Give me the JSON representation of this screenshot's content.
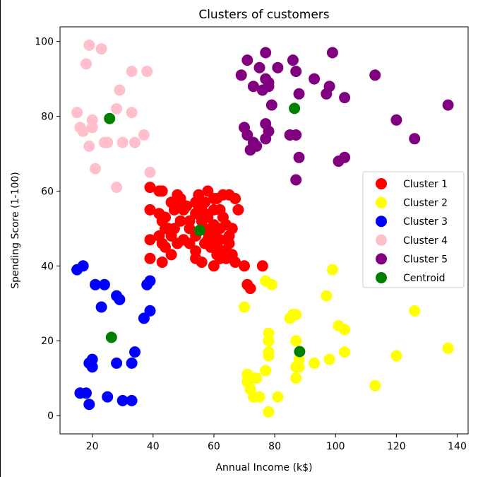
{
  "chart_data": {
    "type": "scatter",
    "title": "Clusters of customers",
    "xlabel": "Annual Income (k$)",
    "ylabel": "Spending Score (1-100)",
    "xlim": [
      9.4,
      143.6
    ],
    "ylim": [
      -4.9,
      103.9
    ],
    "x_ticks": [
      20,
      40,
      60,
      80,
      100,
      120,
      140
    ],
    "y_ticks": [
      0,
      20,
      40,
      60,
      80,
      100
    ],
    "grid": false,
    "legend_position": "center-right",
    "series": [
      {
        "name": "Cluster 1",
        "color": "#ff0000",
        "points": [
          [
            39,
            61
          ],
          [
            42,
            60
          ],
          [
            43,
            60
          ],
          [
            39,
            55
          ],
          [
            42,
            54
          ],
          [
            43,
            52
          ],
          [
            44,
            50
          ],
          [
            44,
            53
          ],
          [
            45,
            50
          ],
          [
            47,
            55
          ],
          [
            48,
            59
          ],
          [
            49,
            58
          ],
          [
            46,
            57
          ],
          [
            48,
            56
          ],
          [
            50,
            55
          ],
          [
            51,
            56
          ],
          [
            52,
            52
          ],
          [
            54,
            54
          ],
          [
            55,
            55
          ],
          [
            56,
            56
          ],
          [
            57,
            57
          ],
          [
            58,
            60
          ],
          [
            60,
            58
          ],
          [
            61,
            58
          ],
          [
            63,
            59
          ],
          [
            65,
            59
          ],
          [
            67,
            58
          ],
          [
            68,
            55
          ],
          [
            54,
            57
          ],
          [
            56,
            52
          ],
          [
            58,
            53
          ],
          [
            60,
            51
          ],
          [
            62,
            50
          ],
          [
            62,
            55
          ],
          [
            64,
            51
          ],
          [
            65,
            48
          ],
          [
            66,
            50
          ],
          [
            65,
            46
          ],
          [
            63,
            44
          ],
          [
            62,
            42
          ],
          [
            60,
            40
          ],
          [
            61,
            43
          ],
          [
            59,
            45
          ],
          [
            57,
            46
          ],
          [
            54,
            48
          ],
          [
            54,
            44
          ],
          [
            54,
            42
          ],
          [
            52,
            46
          ],
          [
            50,
            47
          ],
          [
            48,
            46
          ],
          [
            46,
            48
          ],
          [
            44,
            45
          ],
          [
            43,
            46
          ],
          [
            43,
            41
          ],
          [
            39,
            42
          ],
          [
            39,
            47
          ],
          [
            42,
            48
          ],
          [
            47,
            50
          ],
          [
            49,
            52
          ],
          [
            52,
            50
          ],
          [
            57,
            50
          ],
          [
            60,
            48
          ],
          [
            62,
            47
          ],
          [
            64,
            44
          ],
          [
            66,
            43
          ],
          [
            67,
            41
          ],
          [
            70,
            40
          ],
          [
            71,
            35
          ],
          [
            72,
            34
          ],
          [
            76,
            40
          ],
          [
            56,
            41
          ],
          [
            58,
            49
          ],
          [
            60,
            55
          ],
          [
            63,
            53
          ],
          [
            46,
            43
          ],
          [
            55,
            59
          ],
          [
            58,
            47
          ],
          [
            61,
            46
          ],
          [
            64,
            42
          ],
          [
            57,
            54
          ]
        ]
      },
      {
        "name": "Cluster 2",
        "color": "#ffff00",
        "points": [
          [
            70,
            29
          ],
          [
            71,
            11
          ],
          [
            71,
            9
          ],
          [
            72,
            7
          ],
          [
            73,
            5
          ],
          [
            73,
            10
          ],
          [
            74,
            10
          ],
          [
            75,
            5
          ],
          [
            77,
            12
          ],
          [
            77,
            36
          ],
          [
            78,
            22
          ],
          [
            78,
            20
          ],
          [
            78,
            17
          ],
          [
            78,
            16
          ],
          [
            78,
            1
          ],
          [
            79,
            35
          ],
          [
            81,
            5
          ],
          [
            85,
            26
          ],
          [
            86,
            27
          ],
          [
            87,
            20
          ],
          [
            87,
            13
          ],
          [
            87,
            10
          ],
          [
            87,
            27
          ],
          [
            88,
            13
          ],
          [
            88,
            15
          ],
          [
            93,
            14
          ],
          [
            97,
            32
          ],
          [
            98,
            15
          ],
          [
            99,
            39
          ],
          [
            101,
            24
          ],
          [
            103,
            17
          ],
          [
            103,
            23
          ],
          [
            113,
            8
          ],
          [
            120,
            16
          ],
          [
            126,
            28
          ],
          [
            137,
            18
          ]
        ]
      },
      {
        "name": "Cluster 3",
        "color": "#0000ff",
        "points": [
          [
            15,
            39
          ],
          [
            16,
            6
          ],
          [
            17,
            40
          ],
          [
            18,
            6
          ],
          [
            19,
            3
          ],
          [
            19,
            14
          ],
          [
            20,
            15
          ],
          [
            20,
            13
          ],
          [
            21,
            35
          ],
          [
            23,
            29
          ],
          [
            24,
            35
          ],
          [
            25,
            5
          ],
          [
            28,
            14
          ],
          [
            28,
            32
          ],
          [
            29,
            31
          ],
          [
            30,
            4
          ],
          [
            33,
            4
          ],
          [
            33,
            14
          ],
          [
            34,
            17
          ],
          [
            37,
            26
          ],
          [
            38,
            35
          ],
          [
            39,
            36
          ],
          [
            39,
            28
          ]
        ]
      },
      {
        "name": "Cluster 4",
        "color": "#ffc0cb",
        "points": [
          [
            15,
            81
          ],
          [
            16,
            77
          ],
          [
            17,
            76
          ],
          [
            18,
            94
          ],
          [
            19,
            99
          ],
          [
            19,
            72
          ],
          [
            20,
            77
          ],
          [
            20,
            79
          ],
          [
            21,
            66
          ],
          [
            23,
            98
          ],
          [
            24,
            73
          ],
          [
            25,
            73
          ],
          [
            28,
            82
          ],
          [
            28,
            61
          ],
          [
            29,
            87
          ],
          [
            30,
            73
          ],
          [
            33,
            92
          ],
          [
            33,
            81
          ],
          [
            34,
            73
          ],
          [
            37,
            75
          ],
          [
            38,
            92
          ],
          [
            39,
            65
          ]
        ]
      },
      {
        "name": "Cluster 5",
        "color": "#800080",
        "points": [
          [
            69,
            91
          ],
          [
            70,
            77
          ],
          [
            71,
            95
          ],
          [
            71,
            75
          ],
          [
            72,
            71
          ],
          [
            73,
            88
          ],
          [
            73,
            73
          ],
          [
            74,
            72
          ],
          [
            75,
            93
          ],
          [
            76,
            87
          ],
          [
            77,
            97
          ],
          [
            77,
            74
          ],
          [
            77,
            78
          ],
          [
            77,
            90
          ],
          [
            78,
            76
          ],
          [
            78,
            89
          ],
          [
            78,
            88
          ],
          [
            79,
            83
          ],
          [
            81,
            93
          ],
          [
            85,
            75
          ],
          [
            86,
            95
          ],
          [
            87,
            63
          ],
          [
            87,
            75
          ],
          [
            87,
            92
          ],
          [
            88,
            86
          ],
          [
            88,
            69
          ],
          [
            93,
            90
          ],
          [
            97,
            86
          ],
          [
            98,
            88
          ],
          [
            99,
            97
          ],
          [
            101,
            68
          ],
          [
            103,
            85
          ],
          [
            103,
            69
          ],
          [
            113,
            91
          ],
          [
            120,
            79
          ],
          [
            126,
            74
          ],
          [
            137,
            83
          ]
        ]
      }
    ],
    "centroids": {
      "name": "Centroid",
      "color": "#008000",
      "points": [
        [
          55.3,
          49.5
        ],
        [
          88.2,
          17.1
        ],
        [
          26.3,
          20.9
        ],
        [
          25.7,
          79.4
        ],
        [
          86.5,
          82.1
        ]
      ]
    }
  }
}
